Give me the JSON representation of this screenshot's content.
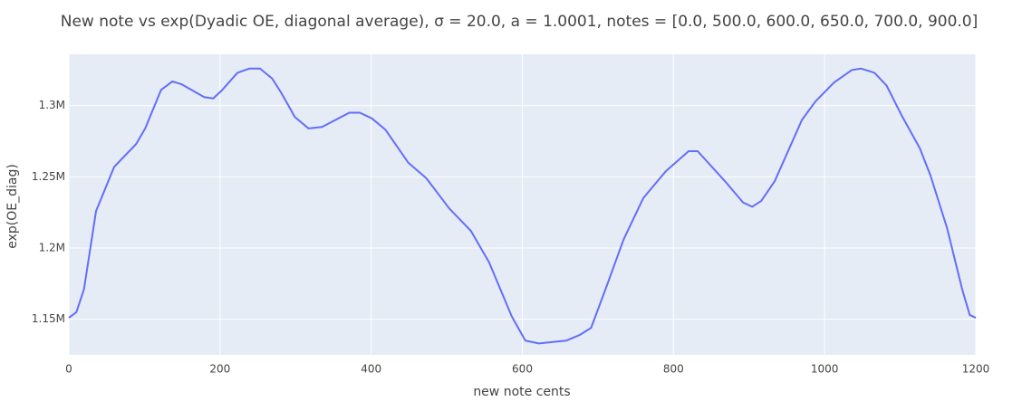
{
  "chart_data": {
    "type": "line",
    "title": "New note vs exp(Dyadic OE, diagonal average), σ = 20.0, a = 1.0001, notes = [0.0, 500.0, 600.0, 650.0, 700.0, 900.0]",
    "x_label": "new note cents",
    "y_label": "exp(OE_diag)",
    "series": [
      {
        "color": "#636efa",
        "x": [
          0,
          10,
          20,
          36,
          60,
          89,
          101,
          122,
          137,
          149,
          179,
          191,
          203,
          223,
          239,
          253,
          269,
          281,
          299,
          317,
          335,
          353,
          371,
          385,
          401,
          419,
          449,
          473,
          503,
          532,
          556,
          586,
          604,
          622,
          658,
          676,
          691,
          710,
          734,
          760,
          790,
          820,
          832,
          868,
          892,
          904,
          916,
          934,
          970,
          988,
          1012,
          1036,
          1048,
          1066,
          1082,
          1102,
          1126,
          1140,
          1162,
          1182,
          1192,
          1200
        ],
        "values": [
          1151000,
          1155000,
          1171000,
          1226000,
          1257000,
          1273000,
          1284000,
          1311000,
          1317000,
          1315000,
          1306000,
          1305000,
          1311000,
          1323000,
          1326000,
          1326000,
          1319000,
          1309000,
          1292000,
          1284000,
          1285000,
          1290000,
          1295000,
          1295000,
          1291000,
          1283000,
          1260000,
          1249000,
          1228000,
          1212000,
          1190000,
          1152000,
          1135000,
          1133000,
          1135000,
          1139000,
          1144000,
          1171000,
          1206000,
          1235000,
          1254000,
          1268000,
          1268000,
          1247000,
          1232000,
          1229000,
          1233000,
          1247000,
          1290000,
          1303000,
          1316000,
          1325000,
          1326000,
          1323000,
          1314000,
          1293000,
          1270000,
          1251000,
          1214000,
          1171000,
          1153000,
          1151000
        ]
      }
    ],
    "xlim": [
      0,
      1200
    ],
    "xticks": [
      0,
      200,
      400,
      600,
      800,
      1000,
      1200
    ],
    "ylim": [
      1125000,
      1336000
    ],
    "yticks": [
      {
        "value": 1150000,
        "label": "1.15M"
      },
      {
        "value": 1200000,
        "label": "1.2M"
      },
      {
        "value": 1250000,
        "label": "1.25M"
      },
      {
        "value": 1300000,
        "label": "1.3M"
      }
    ],
    "grid": true,
    "background": "#e5ecf6"
  }
}
